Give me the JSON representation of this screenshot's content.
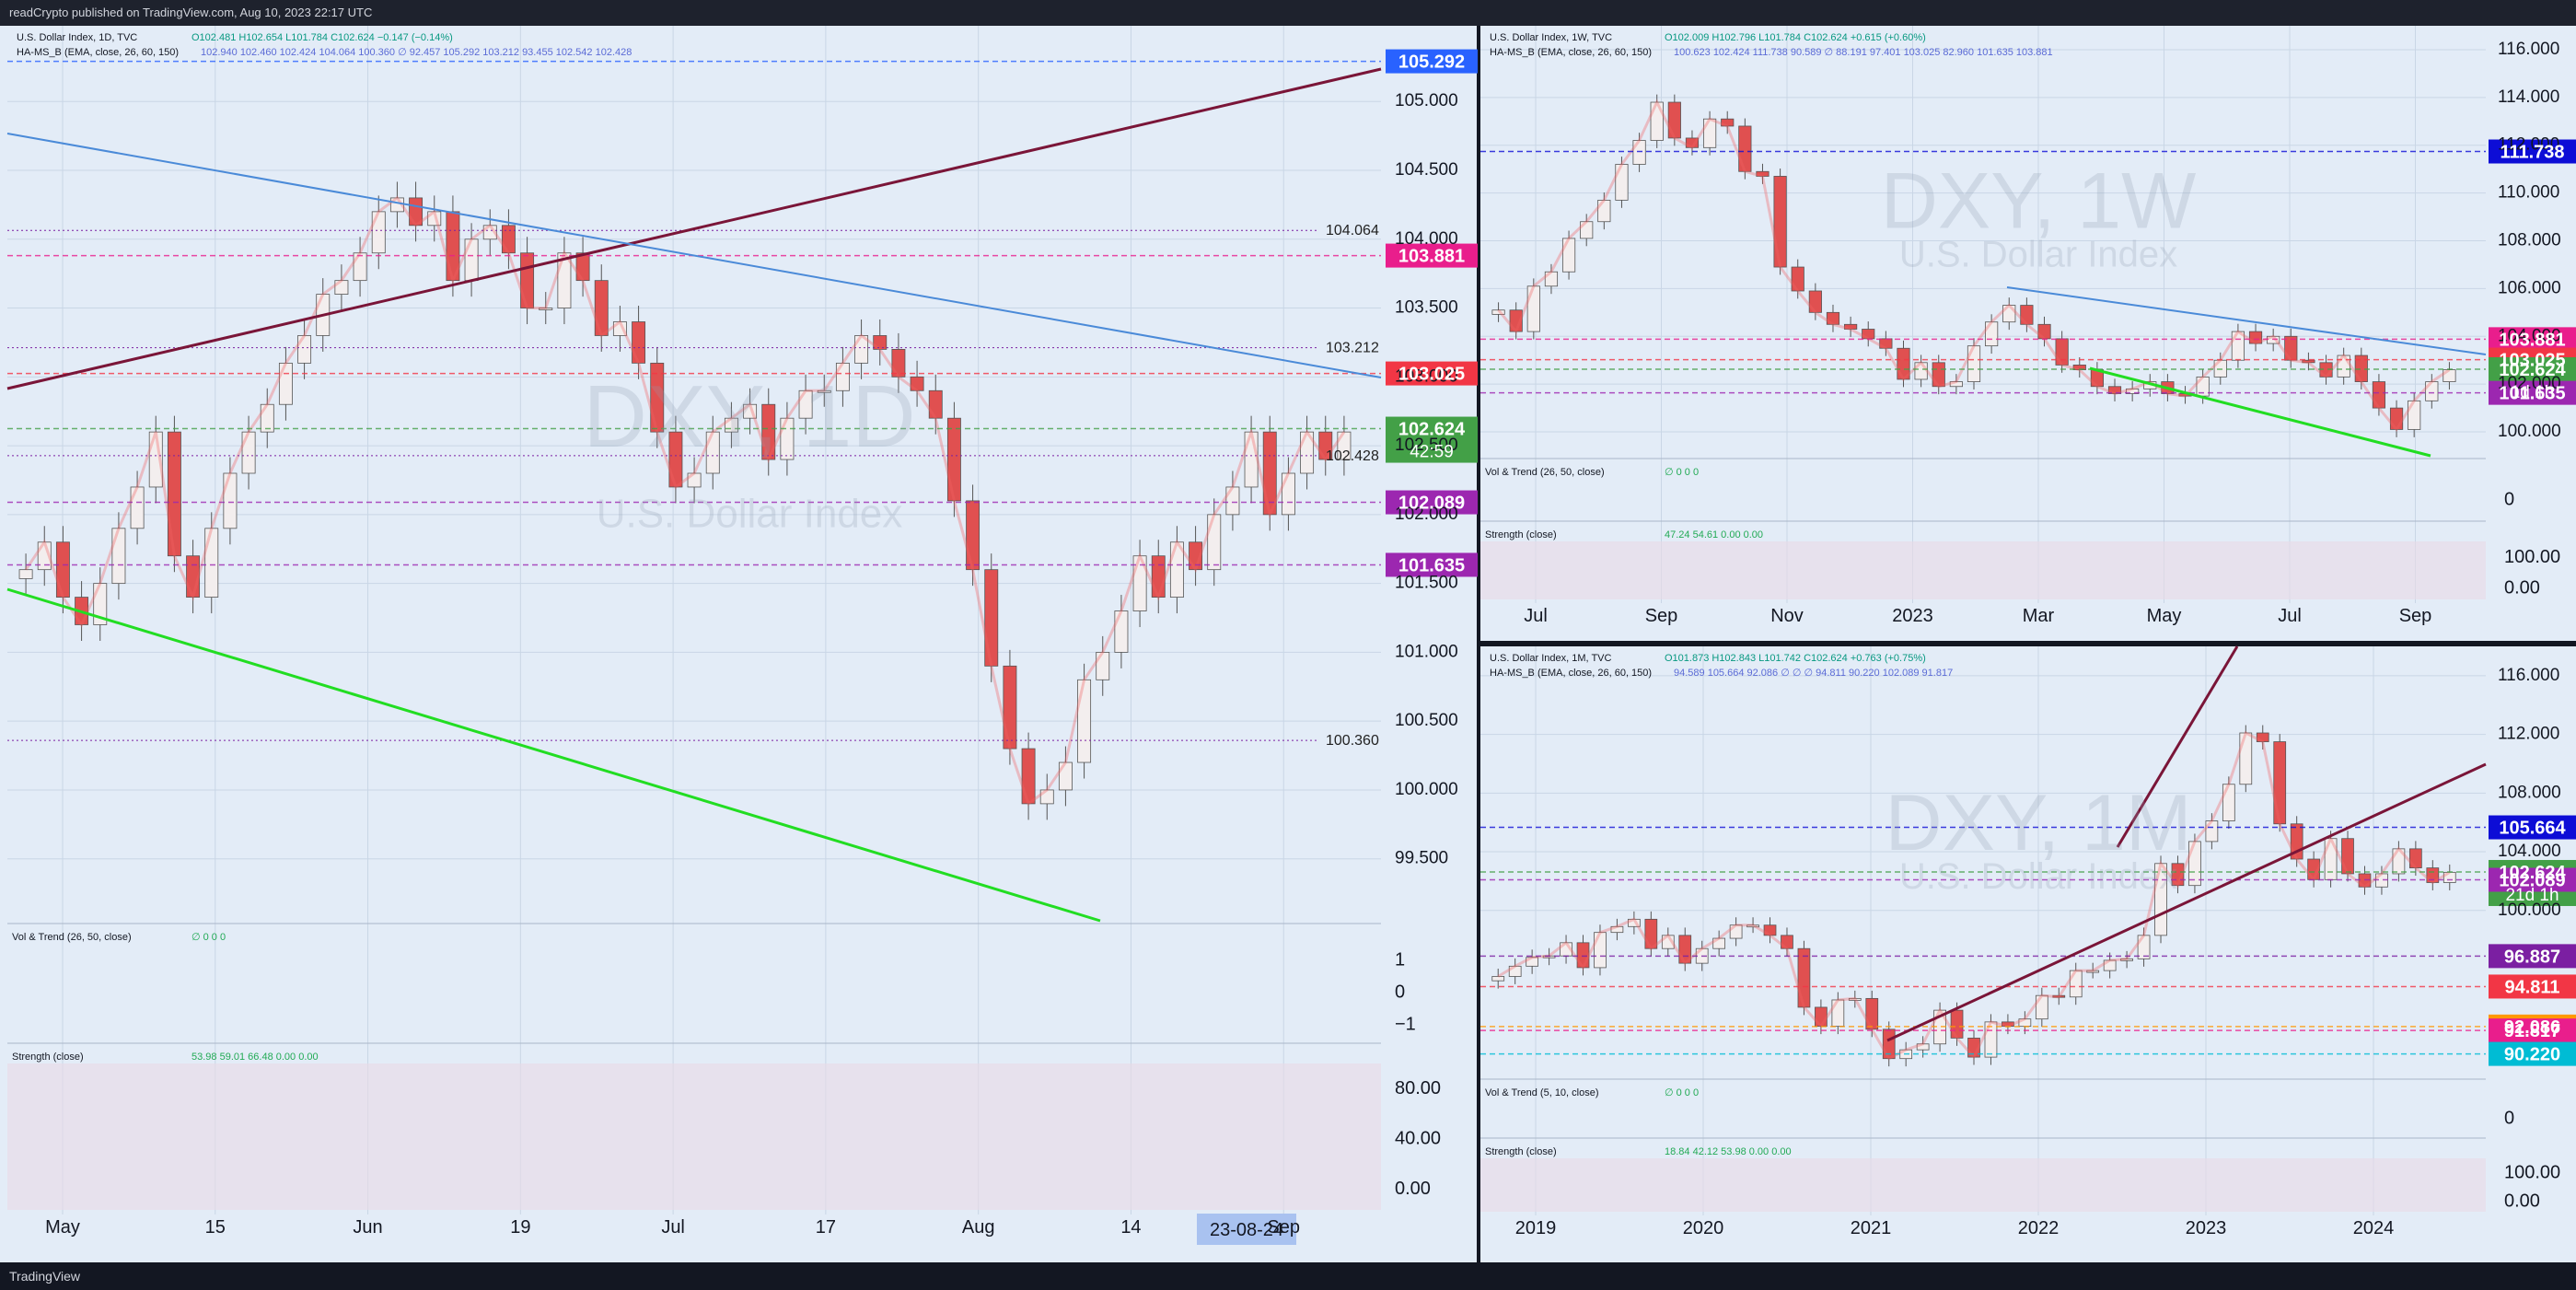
{
  "header": {
    "published_text": "readCrypto published on TradingView.com, Aug 10, 2023 22:17 UTC"
  },
  "footer": {
    "brand": "TradingView"
  },
  "colors": {
    "bg": "#e3ecf7",
    "grid": "#c9d6e6",
    "up": "#f2e8e8",
    "down": "#e05050",
    "green_line": "#22dd22",
    "maroon_line": "#7a1538",
    "blue_line": "#4a8ad8"
  },
  "chart_data": [
    {
      "type": "candlestick",
      "panel": "daily",
      "symbol_line": "U.S. Dollar Index, 1D, TVC",
      "ohlc_text": "O102.481 H102.654 L101.784 C102.624 −0.147 (−0.14%)",
      "indicator_line": "HA-MS_B (EMA, close, 26, 60, 150)",
      "indicator_values": "102.940 102.460 102.424 104.064 100.360 ∅ 92.457 105.292 103.212 93.455 102.542 102.428",
      "watermark_symbol": "DXY, 1D",
      "watermark_name": "U.S. Dollar Index",
      "x_ticks": [
        "May",
        "15",
        "Jun",
        "19",
        "Jul",
        "17",
        "Aug",
        "14",
        "Sep"
      ],
      "date_marker": "23-08-24",
      "y_ticks": [
        "105.000",
        "104.500",
        "104.000",
        "103.500",
        "103.000",
        "102.500",
        "102.000",
        "101.500",
        "101.000",
        "100.500",
        "100.000",
        "99.500"
      ],
      "ylim": [
        99.05,
        105.55
      ],
      "price_labels": [
        {
          "text": "105.292",
          "value": 105.292,
          "color": "#2962ff"
        },
        {
          "text": "103.881",
          "value": 103.881,
          "color": "#e91e8c"
        },
        {
          "text": "103.025",
          "value": 103.025,
          "color": "#f23645"
        },
        {
          "text": "102.624",
          "value": 102.624,
          "color": "#43a047",
          "sub": "42:59"
        },
        {
          "text": "102.089",
          "value": 102.089,
          "color": "#9c27b0"
        },
        {
          "text": "101.635",
          "value": 101.635,
          "color": "#9c27b0"
        }
      ],
      "line_labels": [
        {
          "text": "104.064",
          "value": 104.064
        },
        {
          "text": "103.212",
          "value": 103.212
        },
        {
          "text": "102.428",
          "value": 102.428
        },
        {
          "text": "100.360",
          "value": 100.36
        }
      ],
      "close_series": [
        101.6,
        101.8,
        101.4,
        101.2,
        101.5,
        101.9,
        102.2,
        102.6,
        101.7,
        101.4,
        101.9,
        102.3,
        102.6,
        102.8,
        103.1,
        103.3,
        103.6,
        103.7,
        103.9,
        104.2,
        104.3,
        104.1,
        104.2,
        103.7,
        104.0,
        104.1,
        103.9,
        103.5,
        103.5,
        103.9,
        103.7,
        103.3,
        103.4,
        103.1,
        102.6,
        102.2,
        102.3,
        102.6,
        102.7,
        102.8,
        102.4,
        102.7,
        102.9,
        102.9,
        103.1,
        103.3,
        103.2,
        103.0,
        102.9,
        102.7,
        102.1,
        101.6,
        100.9,
        100.3,
        99.9,
        100.0,
        100.2,
        100.8,
        101.0,
        101.3,
        101.7,
        101.4,
        101.8,
        101.6,
        102.0,
        102.2,
        102.6,
        102.0,
        102.3,
        102.6,
        102.4,
        102.6
      ]
    },
    {
      "type": "candlestick",
      "panel": "weekly",
      "symbol_line": "U.S. Dollar Index, 1W, TVC",
      "ohlc_text": "O102.009 H102.796 L101.784 C102.624 +0.615 (+0.60%)",
      "indicator_line": "HA-MS_B (EMA, close, 26, 60, 150)",
      "indicator_values": "100.623 102.424 111.738 90.589 ∅ 88.191 97.401 103.025 82.960 101.635 103.881",
      "watermark_symbol": "DXY, 1W",
      "watermark_name": "U.S. Dollar Index",
      "x_ticks": [
        "Jul",
        "Sep",
        "Nov",
        "2023",
        "Mar",
        "May",
        "Jul",
        "Sep"
      ],
      "y_ticks": [
        "116.000",
        "114.000",
        "112.000",
        "110.000",
        "108.000",
        "106.000",
        "104.000",
        "102.000",
        "100.000"
      ],
      "ylim": [
        99,
        117
      ],
      "price_labels": [
        {
          "text": "111.738",
          "value": 111.738,
          "color": "#0d0dd6"
        },
        {
          "text": "103.881",
          "value": 103.881,
          "color": "#e91e8c"
        },
        {
          "text": "103.025",
          "value": 103.025,
          "color": "#f23645"
        },
        {
          "text": "102.624",
          "value": 102.624,
          "color": "#43a047",
          "sub": "1d 1h"
        },
        {
          "text": "101.635",
          "value": 101.635,
          "color": "#9c27b0"
        }
      ],
      "close_series": [
        105.1,
        104.2,
        106.1,
        106.7,
        108.1,
        108.8,
        109.7,
        111.2,
        112.2,
        113.8,
        112.3,
        111.9,
        113.1,
        112.8,
        110.9,
        110.7,
        106.9,
        105.9,
        105.0,
        104.5,
        104.3,
        103.9,
        103.5,
        102.2,
        102.9,
        101.9,
        102.1,
        103.6,
        104.6,
        105.3,
        104.5,
        103.9,
        102.8,
        102.6,
        101.9,
        101.6,
        101.8,
        102.1,
        101.6,
        101.5,
        102.3,
        103.0,
        104.2,
        103.7,
        104.0,
        103.0,
        102.9,
        102.3,
        103.2,
        102.1,
        101.0,
        100.1,
        101.3,
        102.1,
        102.6
      ]
    },
    {
      "type": "candlestick",
      "panel": "monthly",
      "symbol_line": "U.S. Dollar Index, 1M, TVC",
      "ohlc_text": "O101.873 H102.843 L101.742 C102.624 +0.763 (+0.75%)",
      "indicator_line": "HA-MS_B (EMA, close, 26, 60, 150)",
      "indicator_values": "94.589 105.664 92.086 ∅ ∅ ∅ 94.811 90.220 102.089 91.817",
      "watermark_symbol": "DXY, 1M",
      "watermark_name": "U.S. Dollar Index",
      "x_ticks": [
        "2019",
        "2020",
        "2021",
        "2022",
        "2023",
        "2024"
      ],
      "y_ticks": [
        "116.000",
        "112.000",
        "108.000",
        "104.000",
        "100.000"
      ],
      "ylim": [
        88.5,
        118
      ],
      "price_labels": [
        {
          "text": "105.664",
          "value": 105.664,
          "color": "#0d0dd6"
        },
        {
          "text": "102.624",
          "value": 102.624,
          "color": "#43a047",
          "sub": "21d 1h"
        },
        {
          "text": "102.089",
          "value": 102.089,
          "color": "#9c27b0"
        },
        {
          "text": "96.887",
          "value": 96.887,
          "color": "#7b1fa2"
        },
        {
          "text": "94.811",
          "value": 94.811,
          "color": "#f23645"
        },
        {
          "text": "92.086",
          "value": 92.086,
          "color": "#ff9800"
        },
        {
          "text": "91.817",
          "value": 91.817,
          "color": "#e91e8c"
        },
        {
          "text": "90.220",
          "value": 90.22,
          "color": "#00bcd4"
        }
      ],
      "close_series": [
        95.5,
        96.2,
        96.8,
        96.9,
        97.8,
        96.1,
        98.5,
        98.9,
        99.4,
        97.4,
        98.3,
        96.4,
        97.4,
        98.1,
        99.0,
        99.0,
        98.3,
        97.4,
        93.4,
        92.1,
        93.9,
        94.0,
        91.9,
        89.9,
        90.5,
        90.9,
        93.2,
        91.3,
        90.0,
        92.4,
        92.1,
        92.6,
        94.2,
        94.1,
        95.9,
        95.9,
        96.6,
        96.7,
        98.3,
        103.2,
        101.7,
        104.7,
        106.1,
        108.6,
        112.1,
        111.5,
        105.9,
        103.5,
        102.1,
        104.9,
        102.5,
        101.6,
        102.5,
        104.2,
        102.9,
        101.9,
        102.6
      ]
    }
  ],
  "sub_panels": {
    "daily_vol": {
      "title": "Vol & Trend (26, 50, close)",
      "values": "∅ 0 0 0",
      "ticks": [
        "1",
        "0",
        "−1"
      ]
    },
    "daily_strength": {
      "title": "Strength (close)",
      "values": "53.98 59.01 66.48 0.00 0.00",
      "ticks": [
        "80.00",
        "40.00",
        "0.00"
      ]
    },
    "weekly_vol": {
      "title": "Vol & Trend (26, 50, close)",
      "values": "∅ 0 0 0",
      "ticks": [
        "0"
      ]
    },
    "weekly_strength": {
      "title": "Strength (close)",
      "values": "47.24 54.61 0.00 0.00",
      "ticks": [
        "100.00",
        "0.00"
      ]
    },
    "monthly_vol": {
      "title": "Vol & Trend (5, 10, close)",
      "values": "∅ 0 0 0",
      "ticks": [
        "0"
      ]
    },
    "monthly_strength": {
      "title": "Strength (close)",
      "values": "18.84 42.12 53.98 0.00 0.00",
      "ticks": [
        "100.00",
        "0.00"
      ]
    }
  }
}
